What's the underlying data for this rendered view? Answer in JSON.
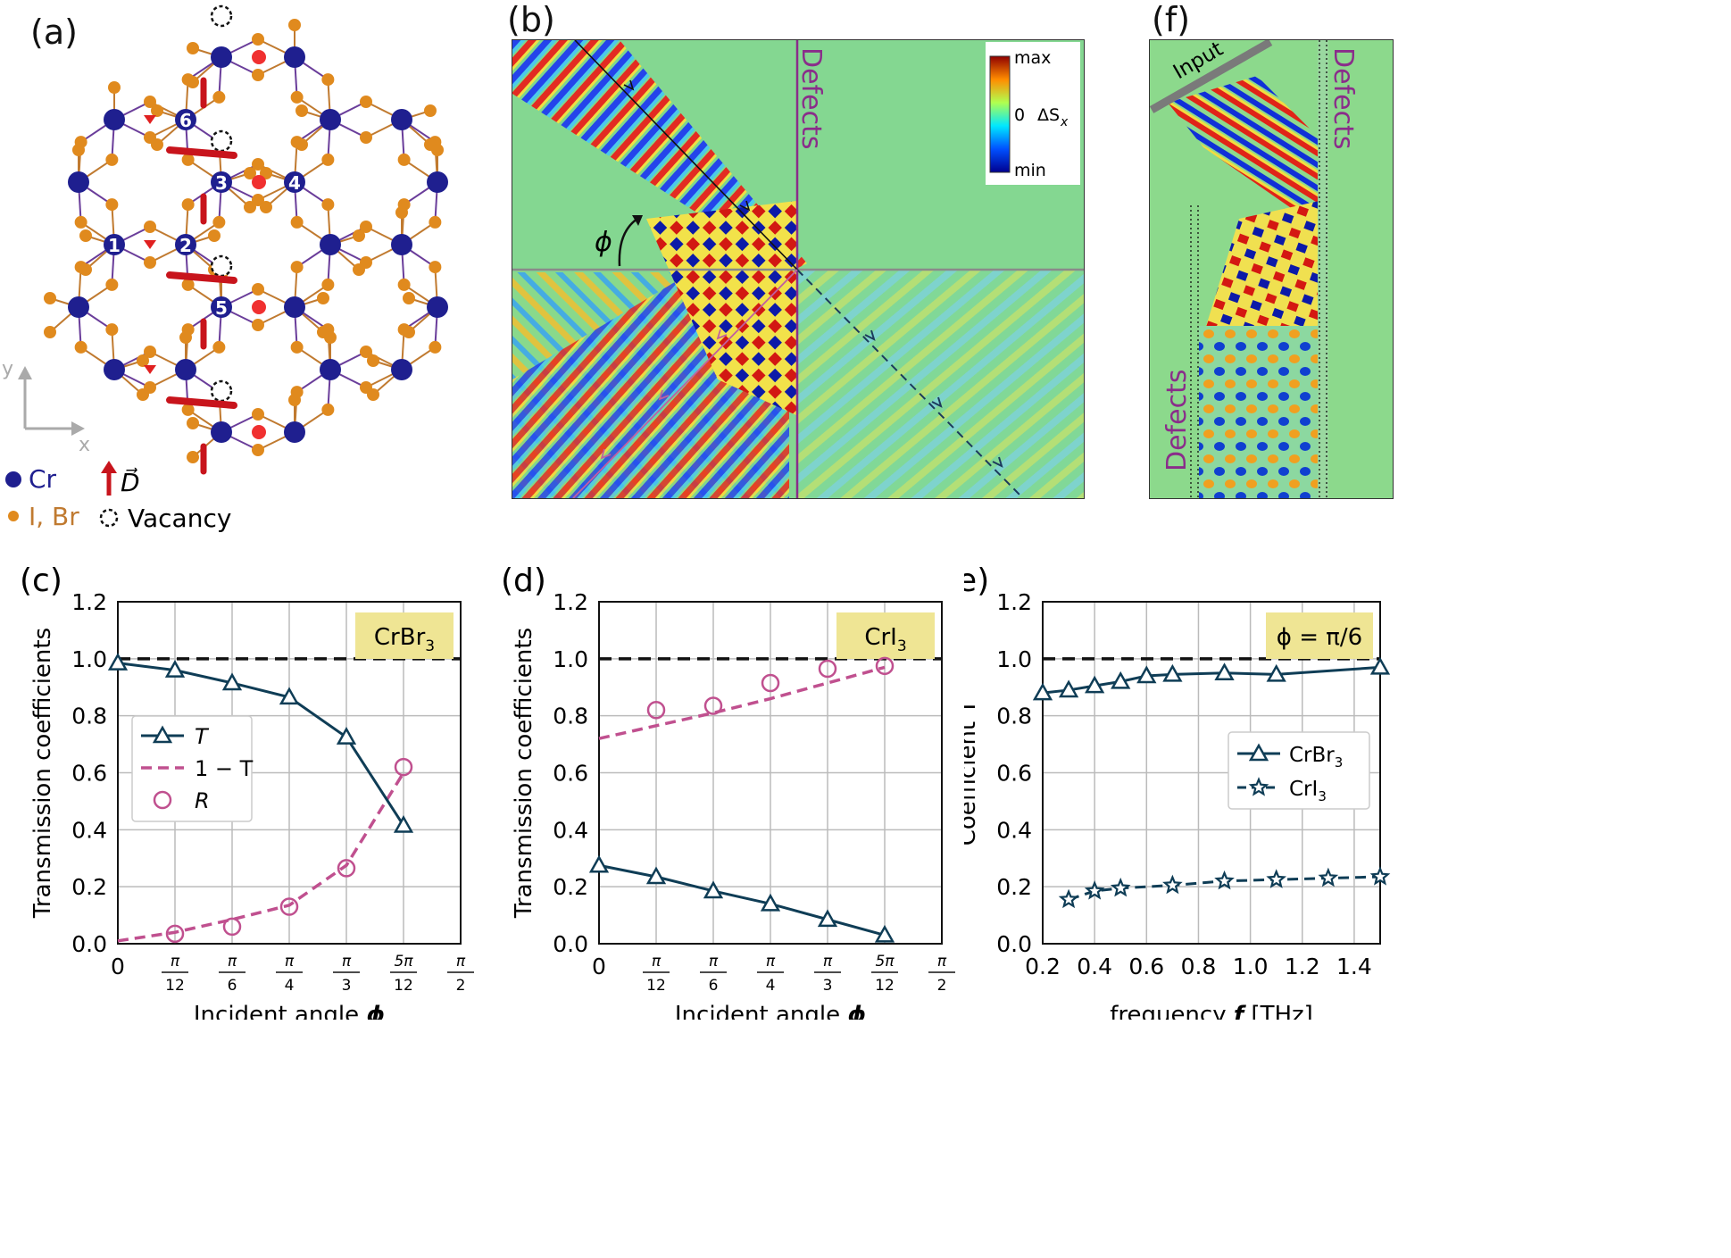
{
  "figure": {
    "panel_a": {
      "label": "(a)",
      "site_labels": [
        "1",
        "2",
        "3",
        "4",
        "5",
        "6"
      ],
      "axes": {
        "x": "x",
        "y": "y"
      },
      "legend": {
        "cr": "Cr",
        "halide": "I, Br",
        "dmi": "D⃗",
        "vacancy": "Vacancy"
      },
      "colors": {
        "cr": "#1f1f8f",
        "halide": "#e08a1e",
        "dmi": "#c8141c",
        "bond": "#6a3d9a"
      }
    },
    "panel_b": {
      "label": "(b)",
      "defects_label": "Defects",
      "angle_label": "ϕ",
      "colorbar": {
        "max": "max",
        "zero": "0",
        "min": "min",
        "quantity": "ΔS",
        "subscript": "x"
      }
    },
    "panel_f": {
      "label": "(f)",
      "input_label": "Input",
      "defects_top": "Defects",
      "defects_bottom": "Defects"
    }
  },
  "chart_data": [
    {
      "id": "c",
      "type": "line",
      "panel_label": "(c)",
      "title_badge": "CrBr",
      "title_sub": "3",
      "xlabel": "Incident angle",
      "xsymbol": "ϕ",
      "ylabel": "Transmission coefficients",
      "xlim": [
        0,
        1.5708
      ],
      "ylim": [
        0,
        1.2
      ],
      "xticks": [
        {
          "v": 0,
          "num": "0",
          "den": ""
        },
        {
          "v": 0.2618,
          "num": "π",
          "den": "12"
        },
        {
          "v": 0.5236,
          "num": "π",
          "den": "6"
        },
        {
          "v": 0.7854,
          "num": "π",
          "den": "4"
        },
        {
          "v": 1.0472,
          "num": "π",
          "den": "3"
        },
        {
          "v": 1.309,
          "num": "5π",
          "den": "12"
        },
        {
          "v": 1.5708,
          "num": "π",
          "den": "2"
        }
      ],
      "yticks": [
        "0.0",
        "0.2",
        "0.4",
        "0.6",
        "0.8",
        "1.0",
        "1.2"
      ],
      "legend": [
        {
          "label": "T",
          "style": "solid-triangle"
        },
        {
          "label": "1 − T",
          "style": "dashed"
        },
        {
          "label": "R",
          "style": "circle"
        }
      ],
      "series": [
        {
          "name": "T",
          "x": [
            0,
            0.2618,
            0.5236,
            0.7854,
            1.0472,
            1.309
          ],
          "values": [
            0.985,
            0.96,
            0.915,
            0.865,
            0.725,
            0.415
          ]
        },
        {
          "name": "1 − T",
          "x": [
            0,
            0.2618,
            0.5236,
            0.7854,
            1.0472,
            1.309
          ],
          "values": [
            0.01,
            0.04,
            0.085,
            0.135,
            0.275,
            0.6
          ]
        },
        {
          "name": "R",
          "x": [
            0.2618,
            0.5236,
            0.7854,
            1.0472,
            1.309
          ],
          "values": [
            0.035,
            0.06,
            0.13,
            0.265,
            0.62
          ]
        }
      ]
    },
    {
      "id": "d",
      "type": "line",
      "panel_label": "(d)",
      "title_badge": "CrI",
      "title_sub": "3",
      "xlabel": "Incident angle",
      "xsymbol": "ϕ",
      "ylabel": "Transmission coefficients",
      "xlim": [
        0,
        1.5708
      ],
      "ylim": [
        0,
        1.2
      ],
      "xticks": [
        {
          "v": 0,
          "num": "0",
          "den": ""
        },
        {
          "v": 0.2618,
          "num": "π",
          "den": "12"
        },
        {
          "v": 0.5236,
          "num": "π",
          "den": "6"
        },
        {
          "v": 0.7854,
          "num": "π",
          "den": "4"
        },
        {
          "v": 1.0472,
          "num": "π",
          "den": "3"
        },
        {
          "v": 1.309,
          "num": "5π",
          "den": "12"
        },
        {
          "v": 1.5708,
          "num": "π",
          "den": "2"
        }
      ],
      "yticks": [
        "0.0",
        "0.2",
        "0.4",
        "0.6",
        "0.8",
        "1.0",
        "1.2"
      ],
      "series": [
        {
          "name": "T",
          "x": [
            0,
            0.2618,
            0.5236,
            0.7854,
            1.0472,
            1.309
          ],
          "values": [
            0.275,
            0.235,
            0.185,
            0.14,
            0.085,
            0.03
          ]
        },
        {
          "name": "1 − T",
          "x": [
            0,
            0.2618,
            0.5236,
            0.7854,
            1.0472,
            1.309
          ],
          "values": [
            0.72,
            0.765,
            0.81,
            0.86,
            0.915,
            0.97
          ]
        },
        {
          "name": "R",
          "x": [
            0.2618,
            0.5236,
            0.7854,
            1.0472,
            1.309
          ],
          "values": [
            0.82,
            0.835,
            0.915,
            0.965,
            0.975
          ]
        }
      ]
    },
    {
      "id": "e",
      "type": "line",
      "panel_label": "(e)",
      "title_badge": "ϕ = π/6",
      "title_sub": "",
      "xlabel": "frequency",
      "xsymbol": "f",
      "xunit": "[THz]",
      "ylabel": "Coefficient T",
      "xlim": [
        0.2,
        1.5
      ],
      "ylim": [
        0,
        1.2
      ],
      "xticks": [
        {
          "v": 0.2,
          "num": "0.2"
        },
        {
          "v": 0.4,
          "num": "0.4"
        },
        {
          "v": 0.6,
          "num": "0.6"
        },
        {
          "v": 0.8,
          "num": "0.8"
        },
        {
          "v": 1.0,
          "num": "1.0"
        },
        {
          "v": 1.2,
          "num": "1.2"
        },
        {
          "v": 1.4,
          "num": "1.4"
        }
      ],
      "yticks": [
        "0.0",
        "0.2",
        "0.4",
        "0.6",
        "0.8",
        "1.0",
        "1.2"
      ],
      "legend": [
        {
          "label": "CrBr",
          "sub": "3",
          "style": "solid-triangle"
        },
        {
          "label": "CrI",
          "sub": "3",
          "style": "dashed-star"
        }
      ],
      "series": [
        {
          "name": "CrBr3",
          "x": [
            0.2,
            0.3,
            0.4,
            0.5,
            0.6,
            0.7,
            0.9,
            1.1,
            1.5
          ],
          "values": [
            0.88,
            0.89,
            0.905,
            0.92,
            0.94,
            0.945,
            0.95,
            0.945,
            0.97
          ]
        },
        {
          "name": "CrI3",
          "x": [
            0.3,
            0.4,
            0.5,
            0.7,
            0.9,
            1.1,
            1.3,
            1.5
          ],
          "values": [
            0.155,
            0.185,
            0.195,
            0.205,
            0.22,
            0.225,
            0.23,
            0.235
          ]
        }
      ]
    }
  ]
}
